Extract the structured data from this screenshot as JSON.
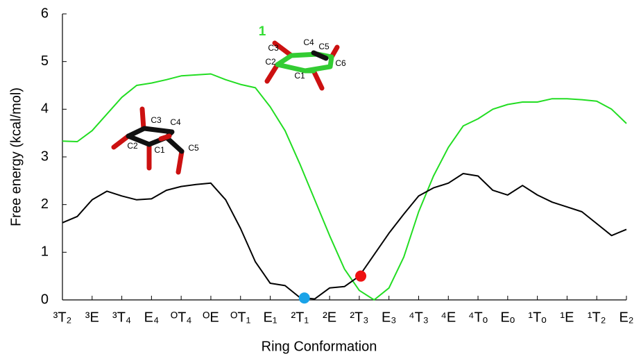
{
  "chart_data": {
    "type": "line",
    "xlabel": "Ring Conformation",
    "ylabel": "Free energy (kcal/mol)",
    "xlim": [
      0,
      19
    ],
    "ylim": [
      0,
      6
    ],
    "yticks": [
      0,
      1,
      2,
      3,
      4,
      5,
      6
    ],
    "xticks": [
      {
        "value": 0,
        "label": "³T₂"
      },
      {
        "value": 1,
        "label": "³E"
      },
      {
        "value": 2,
        "label": "³T₄"
      },
      {
        "value": 3,
        "label": "E₄"
      },
      {
        "value": 4,
        "label": "ᴼT₄"
      },
      {
        "value": 5,
        "label": "ᴼE"
      },
      {
        "value": 6,
        "label": "ᴼT₁"
      },
      {
        "value": 7,
        "label": "E₁"
      },
      {
        "value": 8,
        "label": "²T₁"
      },
      {
        "value": 9,
        "label": "²E"
      },
      {
        "value": 10,
        "label": "²T₃"
      },
      {
        "value": 11,
        "label": "E₃"
      },
      {
        "value": 12,
        "label": "⁴T₃"
      },
      {
        "value": 13,
        "label": "⁴E"
      },
      {
        "value": 14,
        "label": "⁴Tₒ"
      },
      {
        "value": 15,
        "label": "Eₒ"
      },
      {
        "value": 16,
        "label": "¹Tₒ"
      },
      {
        "value": 17,
        "label": "¹E"
      },
      {
        "value": 18,
        "label": "¹T₂"
      },
      {
        "value": 19,
        "label": "E₂"
      }
    ],
    "x": [
      0,
      0.5,
      1,
      1.5,
      2,
      2.5,
      3,
      3.5,
      4,
      4.5,
      5,
      5.5,
      6,
      6.5,
      7,
      7.5,
      8,
      8.5,
      9,
      9.5,
      10,
      10.5,
      11,
      11.5,
      12,
      12.5,
      13,
      13.5,
      14,
      14.5,
      15,
      15.5,
      16,
      16.5,
      17,
      17.5,
      18,
      18.5,
      19
    ],
    "series": [
      {
        "color": "#22dd22",
        "values": [
          3.33,
          3.32,
          3.55,
          3.9,
          4.25,
          4.5,
          4.55,
          4.62,
          4.7,
          4.72,
          4.74,
          4.62,
          4.52,
          4.45,
          4.05,
          3.55,
          2.85,
          2.1,
          1.35,
          0.65,
          0.2,
          0.0,
          0.25,
          0.9,
          1.85,
          2.6,
          3.2,
          3.65,
          3.8,
          4.0,
          4.1,
          4.15,
          4.15,
          4.22,
          4.22,
          4.2,
          4.17,
          4.0,
          3.7
        ]
      },
      {
        "color": "#000000",
        "values": [
          1.62,
          1.75,
          2.1,
          2.28,
          2.18,
          2.1,
          2.12,
          2.3,
          2.38,
          2.42,
          2.45,
          2.1,
          1.5,
          0.8,
          0.35,
          0.3,
          0.05,
          0.02,
          0.25,
          0.28,
          0.5,
          0.95,
          1.4,
          1.8,
          2.18,
          2.35,
          2.45,
          2.65,
          2.6,
          2.3,
          2.2,
          2.4,
          2.2,
          2.05,
          1.95,
          1.85,
          1.6,
          1.35,
          1.48
        ]
      }
    ],
    "points": [
      {
        "x": 8.15,
        "y": 0.04,
        "color": "#1aa3e8"
      },
      {
        "x": 10.05,
        "y": 0.5,
        "color": "#ee1111"
      }
    ],
    "molecules": [
      {
        "label": "1",
        "atoms": [
          "C3",
          "C4",
          "C5",
          "C2",
          "C6",
          "C1"
        ]
      },
      {
        "atoms": [
          "C3",
          "C4",
          "C2",
          "C1",
          "C5"
        ]
      }
    ]
  }
}
